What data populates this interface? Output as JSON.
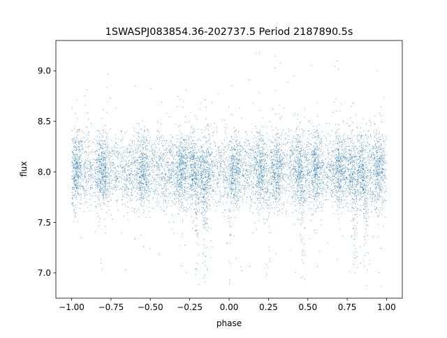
{
  "chart_data": {
    "type": "scatter",
    "title": "1SWASPJ083854.36-202737.5 Period 2187890.5s",
    "xlabel": "phase",
    "ylabel": "flux",
    "xlim": [
      -1.1,
      1.1
    ],
    "ylim": [
      6.75,
      9.3
    ],
    "x_ticks": [
      -1.0,
      -0.75,
      -0.5,
      -0.25,
      0.0,
      0.25,
      0.5,
      0.75,
      1.0
    ],
    "x_tick_labels": [
      "−1.00",
      "−0.75",
      "−0.50",
      "−0.25",
      "0.00",
      "0.25",
      "0.50",
      "0.75",
      "1.00"
    ],
    "y_ticks": [
      7.0,
      7.5,
      8.0,
      8.5,
      9.0
    ],
    "y_tick_labels": [
      "7.0",
      "7.5",
      "8.0",
      "8.5",
      "9.0"
    ],
    "grid": false,
    "legend": "none",
    "marker_color": "#1f77b4",
    "series": [
      {
        "x_range": [
          -1.0,
          1.0
        ],
        "mean_flux": 8.02,
        "typical_scatter": 0.18,
        "outlier_flux_range": [
          6.85,
          9.2
        ],
        "point_count": 9000,
        "dense_columns_phase": [
          -0.97,
          -0.8,
          -0.55,
          -0.3,
          -0.22,
          -0.15,
          0.03,
          0.2,
          0.3,
          0.45,
          0.55,
          0.7,
          0.78,
          0.85,
          0.95
        ],
        "deep_dips_phase": [
          -0.2,
          -0.15,
          0.0,
          0.25,
          0.47,
          0.8,
          0.87
        ]
      }
    ]
  }
}
